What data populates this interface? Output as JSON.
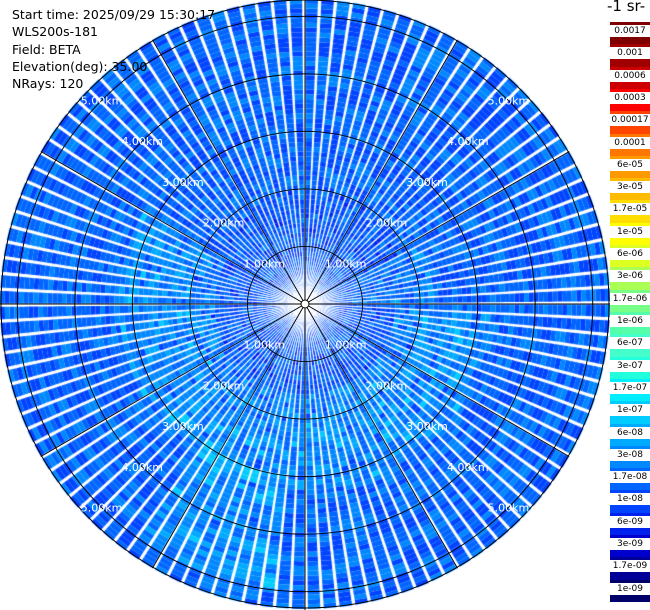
{
  "info": {
    "start_time": "Start time: 2025/09/29 15:30:17",
    "instrument": "WLS200s-181",
    "field": "Field: BETA",
    "elevation": "Elevation(deg): 35.00",
    "nrays": "NRays: 120"
  },
  "colorbar": {
    "title_fragment": "-1 sr-",
    "labels": [
      "0.0017",
      "0.001",
      "0.0006",
      "0.0003",
      "0.00017",
      "0.0001",
      "6e-05",
      "3e-05",
      "1.7e-05",
      "1e-05",
      "6e-06",
      "3e-06",
      "1.7e-06",
      "1e-06",
      "6e-07",
      "3e-07",
      "1.7e-07",
      "1e-07",
      "6e-08",
      "3e-08",
      "1.7e-08",
      "1e-08",
      "6e-09",
      "3e-09",
      "1.7e-09",
      "1e-09"
    ],
    "colors": [
      "#7f0000",
      "#a00000",
      "#cc0000",
      "#ff0000",
      "#ff4400",
      "#ff7700",
      "#ff9900",
      "#ffbb00",
      "#ffdd00",
      "#ffff00",
      "#ddff22",
      "#aaff55",
      "#77ff88",
      "#55ffaa",
      "#44ffcc",
      "#22ffdd",
      "#00eeff",
      "#00ccff",
      "#00aaff",
      "#0088ff",
      "#0066ff",
      "#0044ff",
      "#0022ee",
      "#0000cc",
      "#000099",
      "#00006b"
    ]
  },
  "chart_data": {
    "type": "heatmap",
    "projection": "polar-ppi",
    "field": "BETA",
    "elevation_deg": 35.0,
    "n_rays": 120,
    "range_rings_km": [
      1,
      2,
      3,
      4,
      5
    ],
    "ring_labels": [
      "1.00km",
      "2.00km",
      "3.00km",
      "4.00km",
      "5.00km"
    ],
    "max_range_km": 5.3,
    "spokes_deg": [
      0,
      30,
      60,
      90,
      120,
      150,
      180,
      210,
      240,
      270,
      300,
      330
    ],
    "color_scale": "log",
    "value_range": [
      1e-09,
      0.0017
    ],
    "dominant_values": [
      6e-08,
      1e-07,
      1.7e-07
    ],
    "notes_values": {
      "south_southwest_enhanced": 3e-07,
      "inner_ring_typical": 2e-08
    }
  }
}
